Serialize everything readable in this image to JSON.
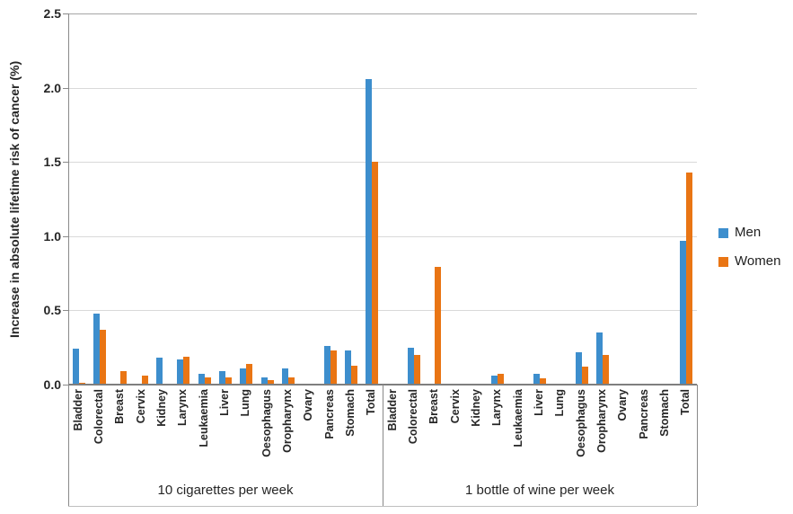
{
  "chart_data": {
    "type": "bar",
    "title": "",
    "ylabel": "Increase in absolute lifetime risk of cancer (%)",
    "ylim": [
      0,
      2.5
    ],
    "yticks": [
      0.0,
      0.5,
      1.0,
      1.5,
      2.0,
      2.5
    ],
    "grid": true,
    "categories": [
      "Bladder",
      "Colorectal",
      "Breast",
      "Cervix",
      "Kidney",
      "Larynx",
      "Leukaemia",
      "Liver",
      "Lung",
      "Oesophagus",
      "Oropharynx",
      "Ovary",
      "Pancreas",
      "Stomach",
      "Total"
    ],
    "groups": [
      {
        "label": "10 cigarettes per week",
        "series": [
          {
            "name": "Men",
            "values": [
              0.24,
              0.48,
              0,
              0,
              0.18,
              0.17,
              0.07,
              0.09,
              0.11,
              0.05,
              0.11,
              0,
              0.26,
              0.23,
              2.06
            ]
          },
          {
            "name": "Women",
            "values": [
              0.01,
              0.37,
              0.09,
              0.06,
              0,
              0.19,
              0.05,
              0.05,
              0.14,
              0.03,
              0.05,
              0,
              0.23,
              0.13,
              1.5
            ]
          }
        ]
      },
      {
        "label": "1 bottle of wine per week",
        "series": [
          {
            "name": "Men",
            "values": [
              0,
              0.25,
              0,
              0,
              0,
              0.06,
              0,
              0.07,
              0,
              0.22,
              0.35,
              0,
              0,
              0,
              0.97
            ]
          },
          {
            "name": "Women",
            "values": [
              0,
              0.2,
              0.79,
              0,
              0,
              0.07,
              0,
              0.04,
              0,
              0.12,
              0.2,
              0,
              0,
              0,
              1.43
            ]
          }
        ]
      }
    ],
    "legend": {
      "position": "right",
      "entries": [
        {
          "label": "Men",
          "color": "#3d8ecd"
        },
        {
          "label": "Women",
          "color": "#e97514"
        }
      ]
    }
  }
}
